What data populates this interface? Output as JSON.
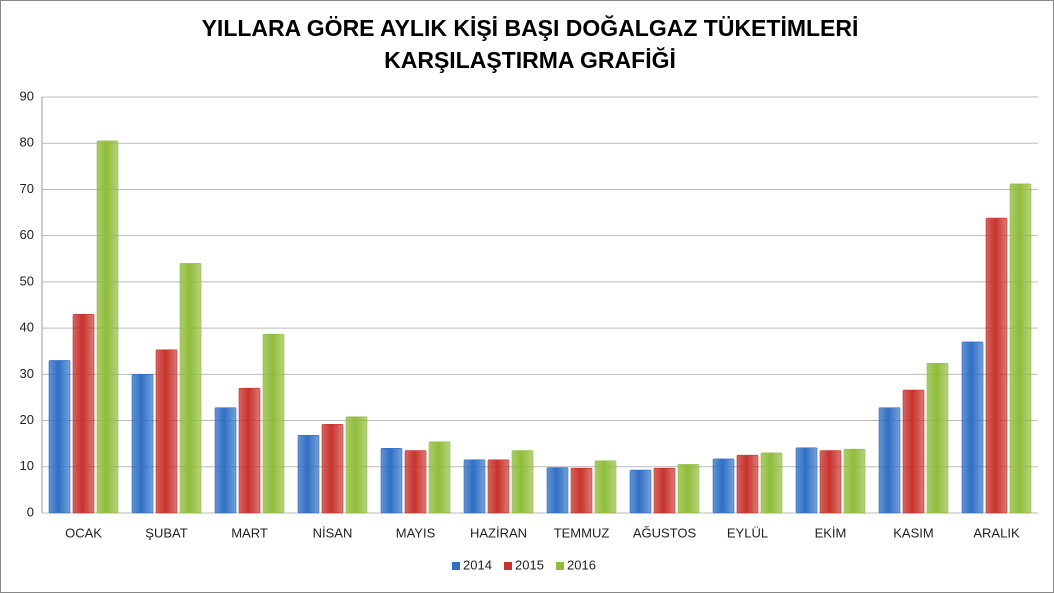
{
  "chart_data": {
    "type": "bar",
    "title": [
      "YILLARA GÖRE AYLIK KİŞİ BAŞI DOĞALGAZ TÜKETİMLERİ",
      "KARŞILAŞTIRMA GRAFİĞİ"
    ],
    "categories": [
      "OCAK",
      "ŞUBAT",
      "MART",
      "NİSAN",
      "MAYIS",
      "HAZİRAN",
      "TEMMUZ",
      "AĞUSTOS",
      "EYLÜL",
      "EKİM",
      "KASIM",
      "ARALIK"
    ],
    "series": [
      {
        "name": "2014",
        "color": "#2f6fc4",
        "values": [
          33,
          30,
          22.8,
          16.8,
          14,
          11.5,
          9.8,
          9.3,
          11.7,
          14.1,
          22.8,
          37
        ]
      },
      {
        "name": "2015",
        "color": "#c8322c",
        "values": [
          43,
          35.3,
          27,
          19.2,
          13.5,
          11.5,
          9.7,
          9.7,
          12.5,
          13.5,
          26.6,
          63.8
        ]
      },
      {
        "name": "2016",
        "color": "#8fbc3a",
        "values": [
          80.5,
          54,
          38.7,
          20.8,
          15.4,
          13.5,
          11.3,
          10.5,
          13,
          13.8,
          32.4,
          71.2
        ]
      }
    ],
    "ylim": [
      0,
      90
    ],
    "yticks": [
      0,
      10,
      20,
      30,
      40,
      50,
      60,
      70,
      80,
      90
    ],
    "grid": true,
    "legend": "bottom"
  }
}
